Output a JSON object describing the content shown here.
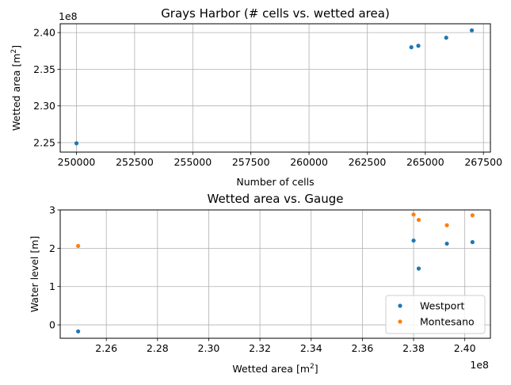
{
  "chart_data": [
    {
      "type": "scatter",
      "title": "Grays Harbor (# cells vs. wetted area)",
      "xlabel": "Number of cells",
      "ylabel": "Wetted area [m",
      "ylabel_sup": "2",
      "ylabel_tail": "]",
      "offset_text": "1e8",
      "grid": true,
      "legend": "none",
      "xlim": [
        249300,
        267800
      ],
      "ylim": [
        2.237,
        2.412
      ],
      "xticks": [
        250000,
        252500,
        255000,
        257500,
        260000,
        262500,
        265000,
        267500
      ],
      "xtick_labels": [
        "250000",
        "252500",
        "255000",
        "257500",
        "260000",
        "262500",
        "265000",
        "267500"
      ],
      "yticks": [
        2.25,
        2.3,
        2.35,
        2.4
      ],
      "ytick_labels": [
        "2.25",
        "2.30",
        "2.35",
        "2.40"
      ],
      "series": [
        {
          "color": "#1f77b4",
          "points": [
            {
              "x": 250000,
              "y": 2.249
            },
            {
              "x": 264400,
              "y": 2.38
            },
            {
              "x": 264700,
              "y": 2.382
            },
            {
              "x": 265900,
              "y": 2.393
            },
            {
              "x": 267000,
              "y": 2.403
            }
          ]
        }
      ]
    },
    {
      "type": "scatter",
      "title": "Wetted area vs. Gauge",
      "xlabel": "Wetted area [m",
      "xlabel_sup": "2",
      "xlabel_tail": "]",
      "ylabel": "Water level [m]",
      "offset_text": "1e8",
      "grid": true,
      "legend": "lower right",
      "xlim": [
        2.242,
        2.41
      ],
      "ylim": [
        -0.35,
        3.0
      ],
      "xticks": [
        2.26,
        2.28,
        2.3,
        2.32,
        2.34,
        2.36,
        2.38,
        2.4
      ],
      "xtick_labels": [
        "2.26",
        "2.28",
        "2.30",
        "2.32",
        "2.34",
        "2.36",
        "2.38",
        "2.40"
      ],
      "yticks": [
        0,
        1,
        2,
        3
      ],
      "ytick_labels": [
        "0",
        "1",
        "2",
        "3"
      ],
      "series": [
        {
          "name": "Westport",
          "color": "#1f77b4",
          "points": [
            {
              "x": 2.249,
              "y": -0.17
            },
            {
              "x": 2.38,
              "y": 2.2
            },
            {
              "x": 2.382,
              "y": 1.47
            },
            {
              "x": 2.393,
              "y": 2.12
            },
            {
              "x": 2.403,
              "y": 2.16
            }
          ]
        },
        {
          "name": "Montesano",
          "color": "#ff7f0e",
          "points": [
            {
              "x": 2.249,
              "y": 2.06
            },
            {
              "x": 2.38,
              "y": 2.88
            },
            {
              "x": 2.382,
              "y": 2.74
            },
            {
              "x": 2.393,
              "y": 2.6
            },
            {
              "x": 2.403,
              "y": 2.86
            }
          ]
        }
      ]
    }
  ]
}
